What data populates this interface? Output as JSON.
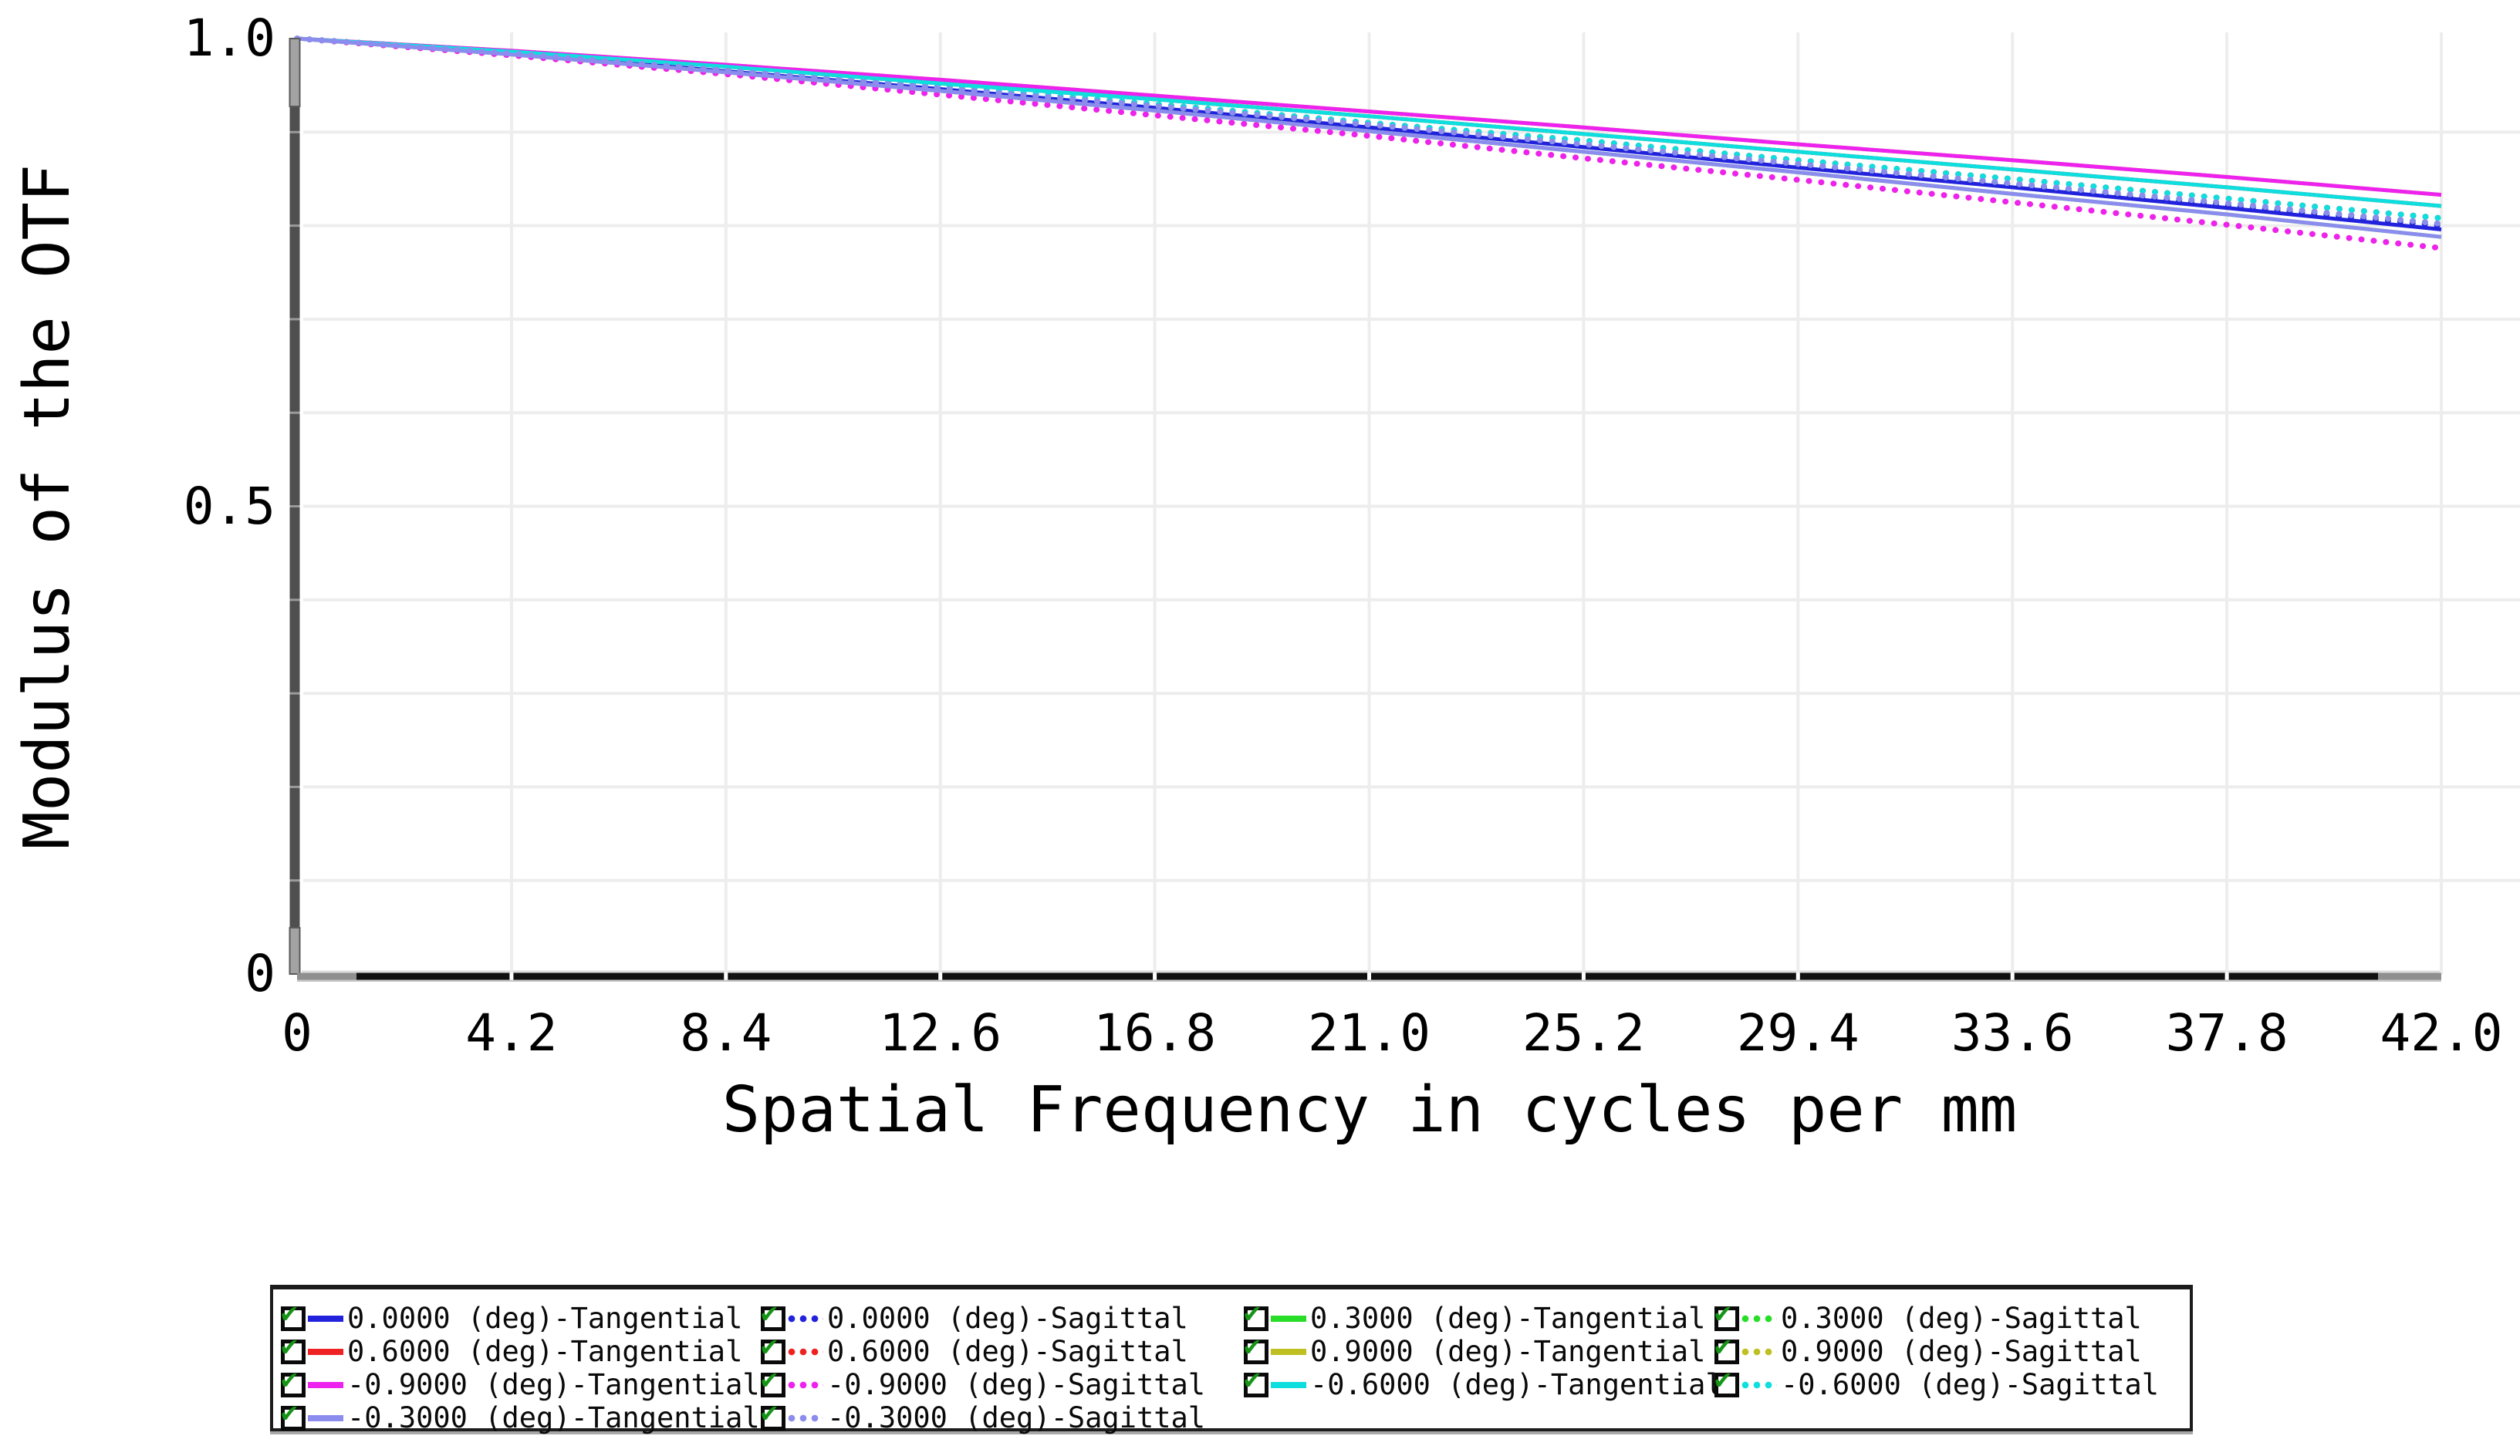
{
  "chart_data": {
    "type": "line",
    "title": "",
    "xlabel": "Spatial Frequency in cycles per mm",
    "ylabel": "Modulus of the OTF",
    "xlim": [
      0,
      42
    ],
    "ylim": [
      0,
      1
    ],
    "grid": true,
    "legend_position": "bottom",
    "x_tick_labels": [
      "0",
      "4.2",
      "8.4",
      "12.6",
      "16.8",
      "21.0",
      "25.2",
      "29.4",
      "33.6",
      "37.8",
      "42.0"
    ],
    "y_ticks": [
      {
        "value": 1.0,
        "label": "1.0"
      },
      {
        "value": 0.5,
        "label": "0.5"
      },
      {
        "value": 0.0,
        "label": "0"
      }
    ],
    "x": [
      0,
      4.2,
      8.4,
      12.6,
      16.8,
      21.0,
      25.2,
      29.4,
      33.6,
      37.8,
      42.0
    ],
    "series": [
      {
        "name": "0.0000 (deg)-Tangential",
        "color": "#2222dd",
        "style": "solid",
        "values": [
          1,
          0.984,
          0.965,
          0.946,
          0.926,
          0.905,
          0.884,
          0.862,
          0.841,
          0.819,
          0.796
        ]
      },
      {
        "name": "0.0000 (deg)-Sagittal",
        "color": "#2222dd",
        "style": "dotted",
        "values": [
          1,
          0.984,
          0.966,
          0.947,
          0.927,
          0.907,
          0.886,
          0.865,
          0.844,
          0.822,
          0.8
        ]
      },
      {
        "name": "0.3000 (deg)-Tangential",
        "color": "#27dd27",
        "style": "solid",
        "values": [
          1,
          0.983,
          0.964,
          0.944,
          0.923,
          0.901,
          0.879,
          0.857,
          0.834,
          0.812,
          0.788
        ]
      },
      {
        "name": "0.3000 (deg)-Sagittal",
        "color": "#27dd27",
        "style": "dotted",
        "values": [
          1,
          0.984,
          0.966,
          0.947,
          0.928,
          0.908,
          0.887,
          0.866,
          0.845,
          0.824,
          0.802
        ]
      },
      {
        "name": "0.6000 (deg)-Tangential",
        "color": "#ee2222",
        "style": "solid",
        "values": [
          1,
          0.986,
          0.97,
          0.952,
          0.935,
          0.917,
          0.898,
          0.879,
          0.86,
          0.841,
          0.821
        ]
      },
      {
        "name": "0.6000 (deg)-Sagittal",
        "color": "#ee2222",
        "style": "dotted",
        "values": [
          1,
          0.985,
          0.967,
          0.949,
          0.93,
          0.91,
          0.891,
          0.87,
          0.85,
          0.829,
          0.808
        ]
      },
      {
        "name": "0.9000 (deg)-Tangential",
        "color": "#bfbf22",
        "style": "solid",
        "values": [
          1,
          0.987,
          0.972,
          0.956,
          0.939,
          0.922,
          0.905,
          0.887,
          0.87,
          0.852,
          0.833
        ]
      },
      {
        "name": "0.9000 (deg)-Sagittal",
        "color": "#bfbf22",
        "style": "dotted",
        "values": [
          1,
          0.982,
          0.962,
          0.94,
          0.918,
          0.896,
          0.872,
          0.849,
          0.825,
          0.801,
          0.776
        ]
      },
      {
        "name": "-0.9000 (deg)-Tangential",
        "color": "#ee22ee",
        "style": "solid",
        "values": [
          1,
          0.987,
          0.972,
          0.956,
          0.939,
          0.922,
          0.905,
          0.887,
          0.87,
          0.852,
          0.833
        ]
      },
      {
        "name": "-0.9000 (deg)-Sagittal",
        "color": "#ee22ee",
        "style": "dotted",
        "values": [
          1,
          0.982,
          0.962,
          0.94,
          0.918,
          0.896,
          0.872,
          0.849,
          0.825,
          0.801,
          0.776
        ]
      },
      {
        "name": "-0.6000 (deg)-Tangential",
        "color": "#0fdede",
        "style": "solid",
        "values": [
          1,
          0.986,
          0.97,
          0.952,
          0.935,
          0.917,
          0.898,
          0.879,
          0.86,
          0.841,
          0.821
        ]
      },
      {
        "name": "-0.6000 (deg)-Sagittal",
        "color": "#0fdede",
        "style": "dotted",
        "values": [
          1,
          0.985,
          0.967,
          0.949,
          0.93,
          0.91,
          0.891,
          0.87,
          0.85,
          0.829,
          0.808
        ]
      },
      {
        "name": "-0.3000 (deg)-Tangential",
        "color": "#8c8cee",
        "style": "solid",
        "values": [
          1,
          0.983,
          0.964,
          0.944,
          0.923,
          0.901,
          0.879,
          0.857,
          0.834,
          0.812,
          0.788
        ]
      },
      {
        "name": "-0.3000 (deg)-Sagittal",
        "color": "#8c8cee",
        "style": "dotted",
        "values": [
          1,
          0.984,
          0.966,
          0.947,
          0.928,
          0.908,
          0.887,
          0.866,
          0.845,
          0.824,
          0.802
        ]
      }
    ]
  },
  "legend": {
    "checkbox_checked": true,
    "check_color": "#169416"
  },
  "style_colors": {
    "gridline": "#ededed",
    "axis_bar_dark": "#4f4f4f",
    "axis_bar_cap": "#a3a3a3",
    "x_axis_black": "#101010",
    "x_axis_gray_cap": "#8f8f8f"
  }
}
